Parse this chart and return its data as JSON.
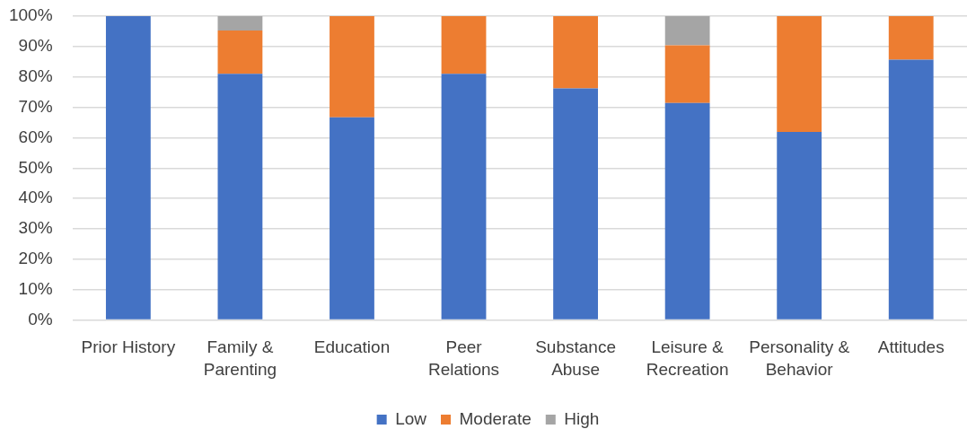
{
  "chart_data": {
    "type": "bar",
    "categories": [
      "Prior History",
      "Family & Parenting",
      "Education",
      "Peer Relations",
      "Substance Abuse",
      "Leisure & Recreation",
      "Personality & Behavior",
      "Attitudes"
    ],
    "series": [
      {
        "name": "Low",
        "color": "#4472c4",
        "values": [
          100,
          81.0,
          66.7,
          81.0,
          76.2,
          71.4,
          61.9,
          85.7
        ]
      },
      {
        "name": "Moderate",
        "color": "#ed7d31",
        "values": [
          0,
          14.3,
          33.3,
          19.0,
          23.8,
          19.0,
          38.1,
          14.3
        ]
      },
      {
        "name": "High",
        "color": "#a5a5a5",
        "values": [
          0,
          4.7,
          0,
          0,
          0,
          9.6,
          0,
          0
        ]
      }
    ],
    "stacked": true,
    "ylim": [
      0,
      100
    ],
    "yticks": [
      {
        "value": 0,
        "label": "0%"
      },
      {
        "value": 10,
        "label": "10%"
      },
      {
        "value": 20,
        "label": "20%"
      },
      {
        "value": 30,
        "label": "30%"
      },
      {
        "value": 40,
        "label": "40%"
      },
      {
        "value": 50,
        "label": "50%"
      },
      {
        "value": 60,
        "label": "60%"
      },
      {
        "value": 70,
        "label": "70%"
      },
      {
        "value": 80,
        "label": "80%"
      },
      {
        "value": 90,
        "label": "90%"
      },
      {
        "value": 100,
        "label": "100%"
      }
    ],
    "grid": "y",
    "legend": "bottom"
  }
}
